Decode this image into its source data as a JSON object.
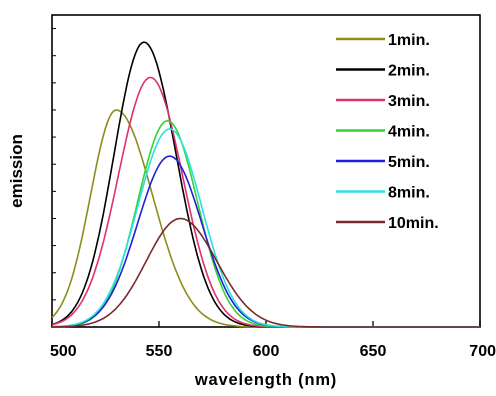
{
  "chart_data": {
    "type": "line",
    "title": "",
    "xlabel": "wavelength (nm)",
    "ylabel": "emission",
    "xlim": [
      500,
      700
    ],
    "ylim": [
      0,
      1.15
    ],
    "x_ticks": [
      500,
      550,
      600,
      650,
      700
    ],
    "y_ticks_labeled": false,
    "grid": false,
    "legend_position": "top-right",
    "series": [
      {
        "name": "1min.",
        "color": "#8c8c1e",
        "peak": 530,
        "height": 0.8,
        "sigma_left": 12,
        "sigma_right": 17
      },
      {
        "name": "2min.",
        "color": "#000000",
        "peak": 543,
        "height": 1.05,
        "sigma_left": 14,
        "sigma_right": 15
      },
      {
        "name": "3min.",
        "color": "#e0306e",
        "peak": 546,
        "height": 0.92,
        "sigma_left": 15,
        "sigma_right": 15
      },
      {
        "name": "4min.",
        "color": "#33d433",
        "peak": 554,
        "height": 0.76,
        "sigma_left": 14,
        "sigma_right": 14
      },
      {
        "name": "5min.",
        "color": "#2020dc",
        "peak": 555,
        "height": 0.63,
        "sigma_left": 15,
        "sigma_right": 15
      },
      {
        "name": "8min.",
        "color": "#2ce0e0",
        "peak": 555,
        "height": 0.73,
        "sigma_left": 15,
        "sigma_right": 15
      },
      {
        "name": "10min.",
        "color": "#7a2a2a",
        "peak": 560,
        "height": 0.4,
        "sigma_left": 16,
        "sigma_right": 17
      }
    ]
  }
}
